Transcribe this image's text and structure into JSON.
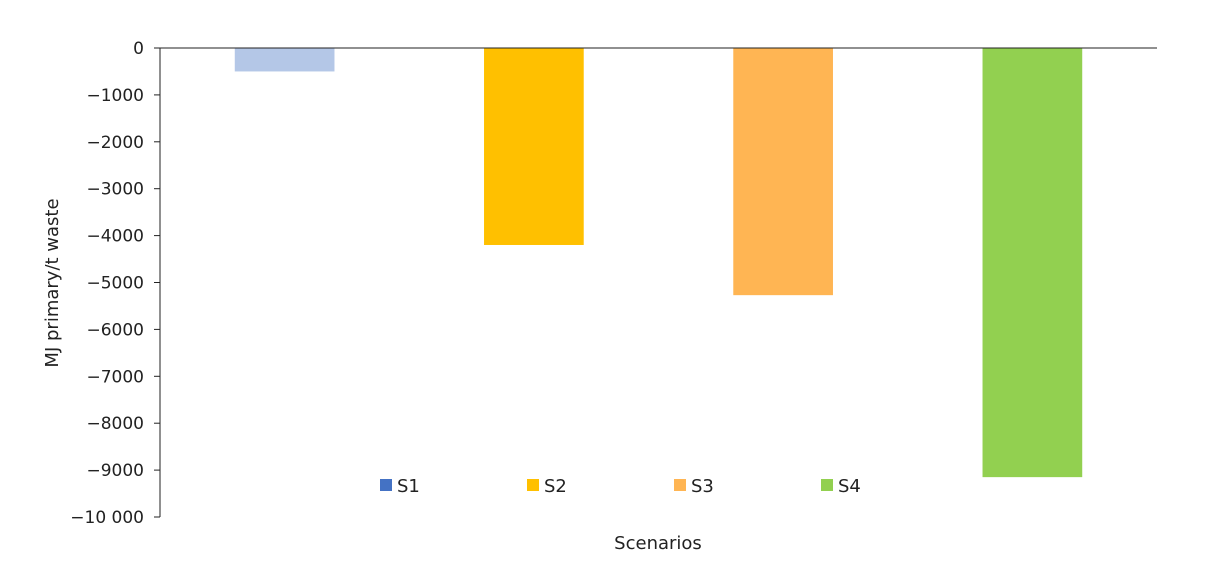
{
  "chart_data": {
    "type": "bar",
    "categories": [
      "S1",
      "S2",
      "S3",
      "S4"
    ],
    "values": [
      -500,
      -4200,
      -5270,
      -9150
    ],
    "colors": [
      "#b4c7e7",
      "#ffc000",
      "#ffb553",
      "#92d050"
    ],
    "legend_colors": [
      "#4472c4",
      "#ffc000",
      "#ffb553",
      "#92d050"
    ],
    "xlabel": "Scenarios",
    "ylabel": "MJ primary/t waste",
    "ylim": [
      -10000,
      0
    ],
    "yticks": [
      0,
      -1000,
      -2000,
      -3000,
      -4000,
      -5000,
      -6000,
      -7000,
      -8000,
      -9000,
      -10000
    ],
    "ytick_labels": [
      "0",
      "−1000",
      "−2000",
      "−3000",
      "−4000",
      "−5000",
      "−6000",
      "−7000",
      "−8000",
      "−9000",
      "−10 000"
    ],
    "legend": [
      "S1",
      "S2",
      "S3",
      "S4"
    ],
    "legend_position": "bottom-inside",
    "grid": false
  }
}
